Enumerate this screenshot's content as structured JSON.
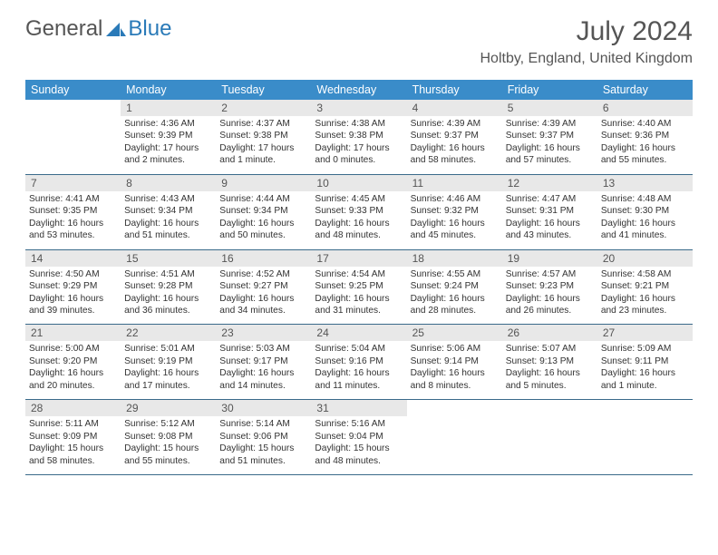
{
  "brand": {
    "word1": "General",
    "word2": "Blue",
    "logo_color": "#2a7ab8"
  },
  "title": {
    "month": "July 2024",
    "location": "Holtby, England, United Kingdom"
  },
  "colors": {
    "header_bg": "#3a8cc9",
    "header_fg": "#ffffff",
    "daynum_bg": "#e8e8e8",
    "text": "#333333",
    "rule": "#3a6a8a"
  },
  "dayHeaders": [
    "Sunday",
    "Monday",
    "Tuesday",
    "Wednesday",
    "Thursday",
    "Friday",
    "Saturday"
  ],
  "weeks": [
    [
      {
        "n": "",
        "sr": "",
        "ss": "",
        "dl": ""
      },
      {
        "n": "1",
        "sr": "4:36 AM",
        "ss": "9:39 PM",
        "dl": "17 hours and 2 minutes."
      },
      {
        "n": "2",
        "sr": "4:37 AM",
        "ss": "9:38 PM",
        "dl": "17 hours and 1 minute."
      },
      {
        "n": "3",
        "sr": "4:38 AM",
        "ss": "9:38 PM",
        "dl": "17 hours and 0 minutes."
      },
      {
        "n": "4",
        "sr": "4:39 AM",
        "ss": "9:37 PM",
        "dl": "16 hours and 58 minutes."
      },
      {
        "n": "5",
        "sr": "4:39 AM",
        "ss": "9:37 PM",
        "dl": "16 hours and 57 minutes."
      },
      {
        "n": "6",
        "sr": "4:40 AM",
        "ss": "9:36 PM",
        "dl": "16 hours and 55 minutes."
      }
    ],
    [
      {
        "n": "7",
        "sr": "4:41 AM",
        "ss": "9:35 PM",
        "dl": "16 hours and 53 minutes."
      },
      {
        "n": "8",
        "sr": "4:43 AM",
        "ss": "9:34 PM",
        "dl": "16 hours and 51 minutes."
      },
      {
        "n": "9",
        "sr": "4:44 AM",
        "ss": "9:34 PM",
        "dl": "16 hours and 50 minutes."
      },
      {
        "n": "10",
        "sr": "4:45 AM",
        "ss": "9:33 PM",
        "dl": "16 hours and 48 minutes."
      },
      {
        "n": "11",
        "sr": "4:46 AM",
        "ss": "9:32 PM",
        "dl": "16 hours and 45 minutes."
      },
      {
        "n": "12",
        "sr": "4:47 AM",
        "ss": "9:31 PM",
        "dl": "16 hours and 43 minutes."
      },
      {
        "n": "13",
        "sr": "4:48 AM",
        "ss": "9:30 PM",
        "dl": "16 hours and 41 minutes."
      }
    ],
    [
      {
        "n": "14",
        "sr": "4:50 AM",
        "ss": "9:29 PM",
        "dl": "16 hours and 39 minutes."
      },
      {
        "n": "15",
        "sr": "4:51 AM",
        "ss": "9:28 PM",
        "dl": "16 hours and 36 minutes."
      },
      {
        "n": "16",
        "sr": "4:52 AM",
        "ss": "9:27 PM",
        "dl": "16 hours and 34 minutes."
      },
      {
        "n": "17",
        "sr": "4:54 AM",
        "ss": "9:25 PM",
        "dl": "16 hours and 31 minutes."
      },
      {
        "n": "18",
        "sr": "4:55 AM",
        "ss": "9:24 PM",
        "dl": "16 hours and 28 minutes."
      },
      {
        "n": "19",
        "sr": "4:57 AM",
        "ss": "9:23 PM",
        "dl": "16 hours and 26 minutes."
      },
      {
        "n": "20",
        "sr": "4:58 AM",
        "ss": "9:21 PM",
        "dl": "16 hours and 23 minutes."
      }
    ],
    [
      {
        "n": "21",
        "sr": "5:00 AM",
        "ss": "9:20 PM",
        "dl": "16 hours and 20 minutes."
      },
      {
        "n": "22",
        "sr": "5:01 AM",
        "ss": "9:19 PM",
        "dl": "16 hours and 17 minutes."
      },
      {
        "n": "23",
        "sr": "5:03 AM",
        "ss": "9:17 PM",
        "dl": "16 hours and 14 minutes."
      },
      {
        "n": "24",
        "sr": "5:04 AM",
        "ss": "9:16 PM",
        "dl": "16 hours and 11 minutes."
      },
      {
        "n": "25",
        "sr": "5:06 AM",
        "ss": "9:14 PM",
        "dl": "16 hours and 8 minutes."
      },
      {
        "n": "26",
        "sr": "5:07 AM",
        "ss": "9:13 PM",
        "dl": "16 hours and 5 minutes."
      },
      {
        "n": "27",
        "sr": "5:09 AM",
        "ss": "9:11 PM",
        "dl": "16 hours and 1 minute."
      }
    ],
    [
      {
        "n": "28",
        "sr": "5:11 AM",
        "ss": "9:09 PM",
        "dl": "15 hours and 58 minutes."
      },
      {
        "n": "29",
        "sr": "5:12 AM",
        "ss": "9:08 PM",
        "dl": "15 hours and 55 minutes."
      },
      {
        "n": "30",
        "sr": "5:14 AM",
        "ss": "9:06 PM",
        "dl": "15 hours and 51 minutes."
      },
      {
        "n": "31",
        "sr": "5:16 AM",
        "ss": "9:04 PM",
        "dl": "15 hours and 48 minutes."
      },
      {
        "n": "",
        "sr": "",
        "ss": "",
        "dl": ""
      },
      {
        "n": "",
        "sr": "",
        "ss": "",
        "dl": ""
      },
      {
        "n": "",
        "sr": "",
        "ss": "",
        "dl": ""
      }
    ]
  ],
  "labels": {
    "sunrise": "Sunrise:",
    "sunset": "Sunset:",
    "daylight": "Daylight:"
  }
}
